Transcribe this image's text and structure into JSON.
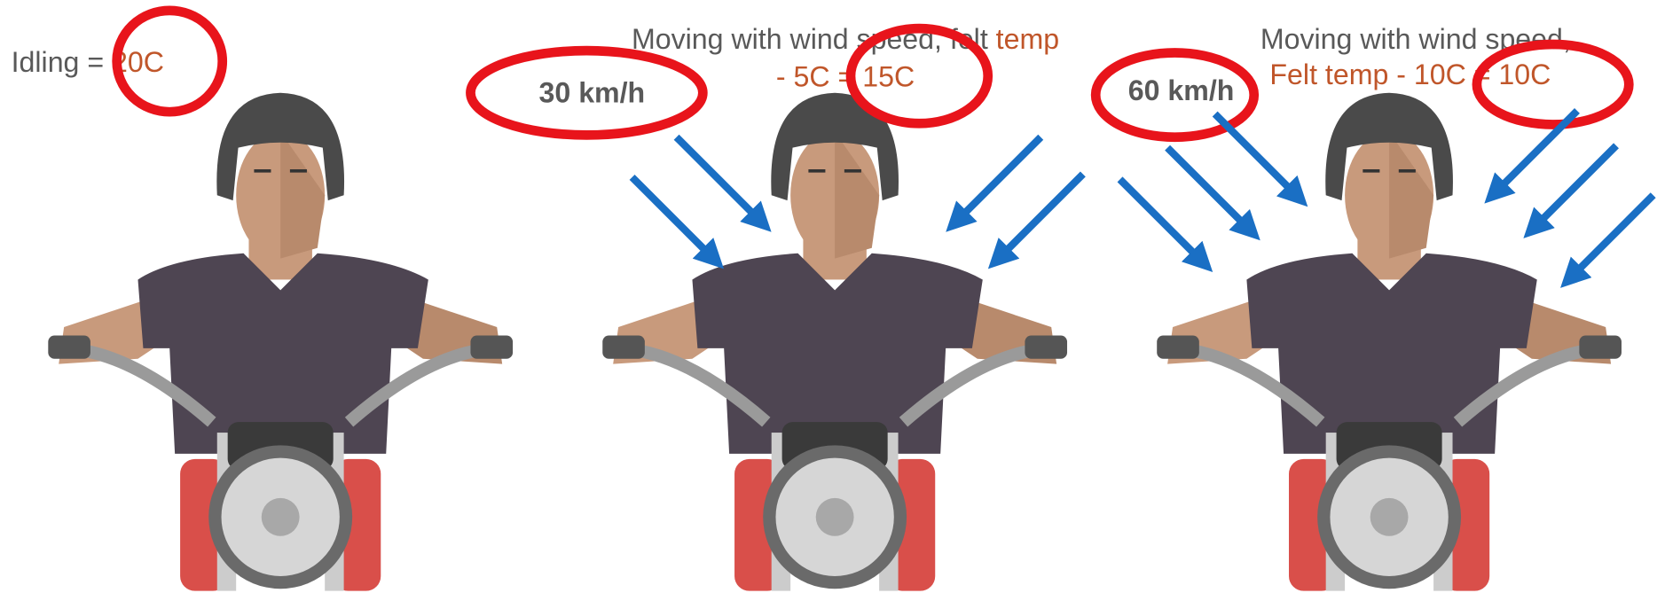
{
  "panels": [
    {
      "caption": {
        "plain": "Idling = ",
        "highlight": "20C"
      }
    },
    {
      "caption": {
        "line1_plain": "Moving with wind speed, felt ",
        "line1_highlight": "temp",
        "line2": "- 5C = 15C"
      },
      "speed": "30 km/h"
    },
    {
      "caption": {
        "line1": "Moving with wind speed,",
        "line2": "Felt temp - 10C = 10C"
      },
      "speed": "60 km/h"
    }
  ]
}
